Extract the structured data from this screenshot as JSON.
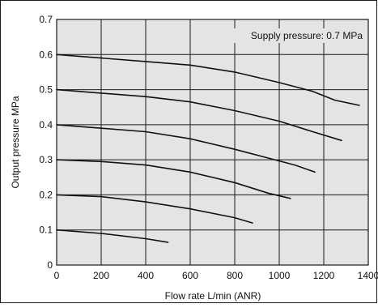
{
  "chart_data": {
    "type": "line",
    "xlabel": "Flow rate   L/min (ANR)",
    "ylabel": "Output pressure  MPa",
    "xlim": [
      0,
      1400
    ],
    "ylim": [
      0,
      0.7
    ],
    "x_ticks": [
      "0",
      "200",
      "400",
      "600",
      "800",
      "1000",
      "1200",
      "1400"
    ],
    "y_ticks": [
      "0",
      "0.1",
      "0.2",
      "0.3",
      "0.4",
      "0.5",
      "0.6",
      "0.7"
    ],
    "grid": true,
    "annotation": "Supply pressure: 0.7 MPa",
    "colors": {
      "plot_bg": "#e4e4e4",
      "line": "#111111",
      "grid": "#1a1a1a"
    },
    "series": [
      {
        "x": [
          0,
          200,
          400,
          600,
          800,
          1000,
          1150,
          1250,
          1360
        ],
        "y": [
          0.6,
          0.59,
          0.58,
          0.57,
          0.55,
          0.52,
          0.495,
          0.47,
          0.455
        ]
      },
      {
        "x": [
          0,
          200,
          400,
          600,
          800,
          1000,
          1150,
          1280
        ],
        "y": [
          0.5,
          0.49,
          0.48,
          0.465,
          0.44,
          0.41,
          0.38,
          0.355
        ]
      },
      {
        "x": [
          0,
          200,
          400,
          600,
          800,
          950,
          1070,
          1160
        ],
        "y": [
          0.4,
          0.39,
          0.38,
          0.36,
          0.33,
          0.305,
          0.285,
          0.265
        ]
      },
      {
        "x": [
          0,
          200,
          400,
          600,
          800,
          950,
          1050
        ],
        "y": [
          0.3,
          0.295,
          0.285,
          0.265,
          0.235,
          0.205,
          0.19
        ]
      },
      {
        "x": [
          0,
          200,
          400,
          600,
          800,
          880
        ],
        "y": [
          0.2,
          0.195,
          0.18,
          0.16,
          0.135,
          0.12
        ]
      },
      {
        "x": [
          0,
          200,
          400,
          500
        ],
        "y": [
          0.1,
          0.09,
          0.075,
          0.065
        ]
      }
    ]
  }
}
